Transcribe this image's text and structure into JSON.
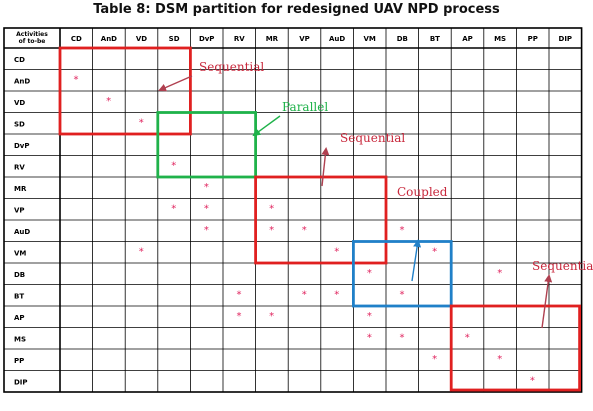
{
  "title": "Table 8: DSM partition for redesigned UAV NPD process",
  "corner_label": [
    "Activities",
    "of to-be"
  ],
  "activities": [
    "CD",
    "AnD",
    "VD",
    "SD",
    "DvP",
    "RV",
    "MR",
    "VP",
    "AuD",
    "VM",
    "DB",
    "BT",
    "AP",
    "MS",
    "PP",
    "DIP"
  ],
  "dependencies": [
    {
      "row": "AnD",
      "col": "CD"
    },
    {
      "row": "VD",
      "col": "AnD"
    },
    {
      "row": "SD",
      "col": "VD"
    },
    {
      "row": "RV",
      "col": "SD"
    },
    {
      "row": "MR",
      "col": "DvP"
    },
    {
      "row": "VP",
      "col": "SD"
    },
    {
      "row": "VP",
      "col": "DvP"
    },
    {
      "row": "VP",
      "col": "MR"
    },
    {
      "row": "AuD",
      "col": "DvP"
    },
    {
      "row": "AuD",
      "col": "MR"
    },
    {
      "row": "AuD",
      "col": "VP"
    },
    {
      "row": "AuD",
      "col": "DB"
    },
    {
      "row": "VM",
      "col": "VD"
    },
    {
      "row": "VM",
      "col": "AuD"
    },
    {
      "row": "VM",
      "col": "BT"
    },
    {
      "row": "DB",
      "col": "VM"
    },
    {
      "row": "DB",
      "col": "MS"
    },
    {
      "row": "BT",
      "col": "RV"
    },
    {
      "row": "BT",
      "col": "VP"
    },
    {
      "row": "BT",
      "col": "AuD"
    },
    {
      "row": "BT",
      "col": "DB"
    },
    {
      "row": "AP",
      "col": "RV"
    },
    {
      "row": "AP",
      "col": "MR"
    },
    {
      "row": "AP",
      "col": "VM"
    },
    {
      "row": "MS",
      "col": "VM"
    },
    {
      "row": "MS",
      "col": "DB"
    },
    {
      "row": "MS",
      "col": "AP"
    },
    {
      "row": "PP",
      "col": "BT"
    },
    {
      "row": "PP",
      "col": "MS"
    },
    {
      "row": "DIP",
      "col": "PP"
    }
  ],
  "blocks": [
    {
      "label": "Sequential",
      "from": "CD",
      "to": "SD",
      "color": "#e02020"
    },
    {
      "label": "Parallel",
      "from": "SD",
      "to": "RV",
      "color": "#1fb24a"
    },
    {
      "label": "Sequential",
      "from": "MR",
      "to": "VM",
      "color": "#e02020"
    },
    {
      "label": "Coupled",
      "from": "VM",
      "to": "BT",
      "color": "#2080c8"
    },
    {
      "label": "Sequential",
      "from": "AP",
      "to": "DIP",
      "color": "#e02020"
    }
  ],
  "colors": {
    "grid": "#000000",
    "mark": "#e0245e",
    "label_red": "#c8283c",
    "arrow_red": "#b04050",
    "label_green": "#1fb24a",
    "arrow_blue": "#2080c8"
  }
}
